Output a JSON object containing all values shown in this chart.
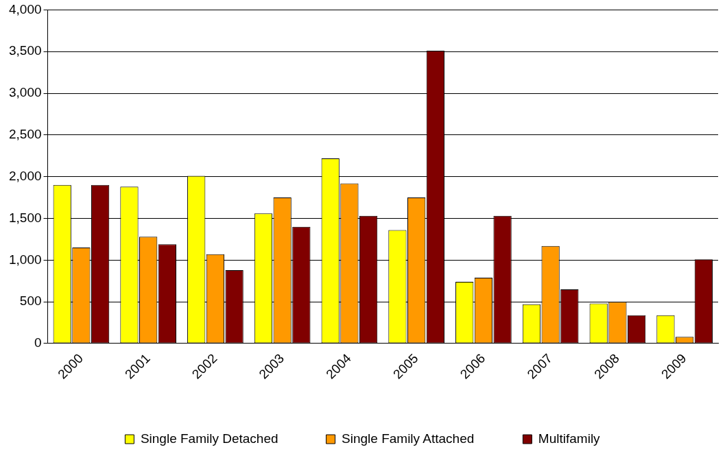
{
  "chart_data": {
    "type": "bar",
    "categories": [
      "2000",
      "2001",
      "2002",
      "2003",
      "2004",
      "2005",
      "2006",
      "2007",
      "2008",
      "2009"
    ],
    "series": [
      {
        "name": "Single Family Detached",
        "color": "#ffff00",
        "values": [
          1900,
          1880,
          2010,
          1560,
          2220,
          1360,
          740,
          470,
          480,
          340
        ]
      },
      {
        "name": "Single Family Attached",
        "color": "#ff9900",
        "values": [
          1150,
          1280,
          1070,
          1750,
          1920,
          1750,
          790,
          1170,
          500,
          80
        ]
      },
      {
        "name": "Multifamily",
        "color": "#800000",
        "values": [
          1900,
          1190,
          880,
          1400,
          1530,
          3510,
          1530,
          650,
          340,
          1010
        ]
      }
    ],
    "ylim": [
      0,
      4000
    ],
    "yticks": [
      0,
      500,
      {
        "value": 1000,
        "label": "1,000"
      },
      {
        "value": 1500,
        "label": "1,500"
      },
      {
        "value": 2000,
        "label": "2,000"
      },
      {
        "value": 2500,
        "label": "2,500"
      },
      {
        "value": 3000,
        "label": "3,000"
      },
      {
        "value": 3500,
        "label": "3,500"
      },
      {
        "value": 4000,
        "label": "4,000"
      }
    ],
    "grid": "y",
    "legend": "bottom"
  }
}
